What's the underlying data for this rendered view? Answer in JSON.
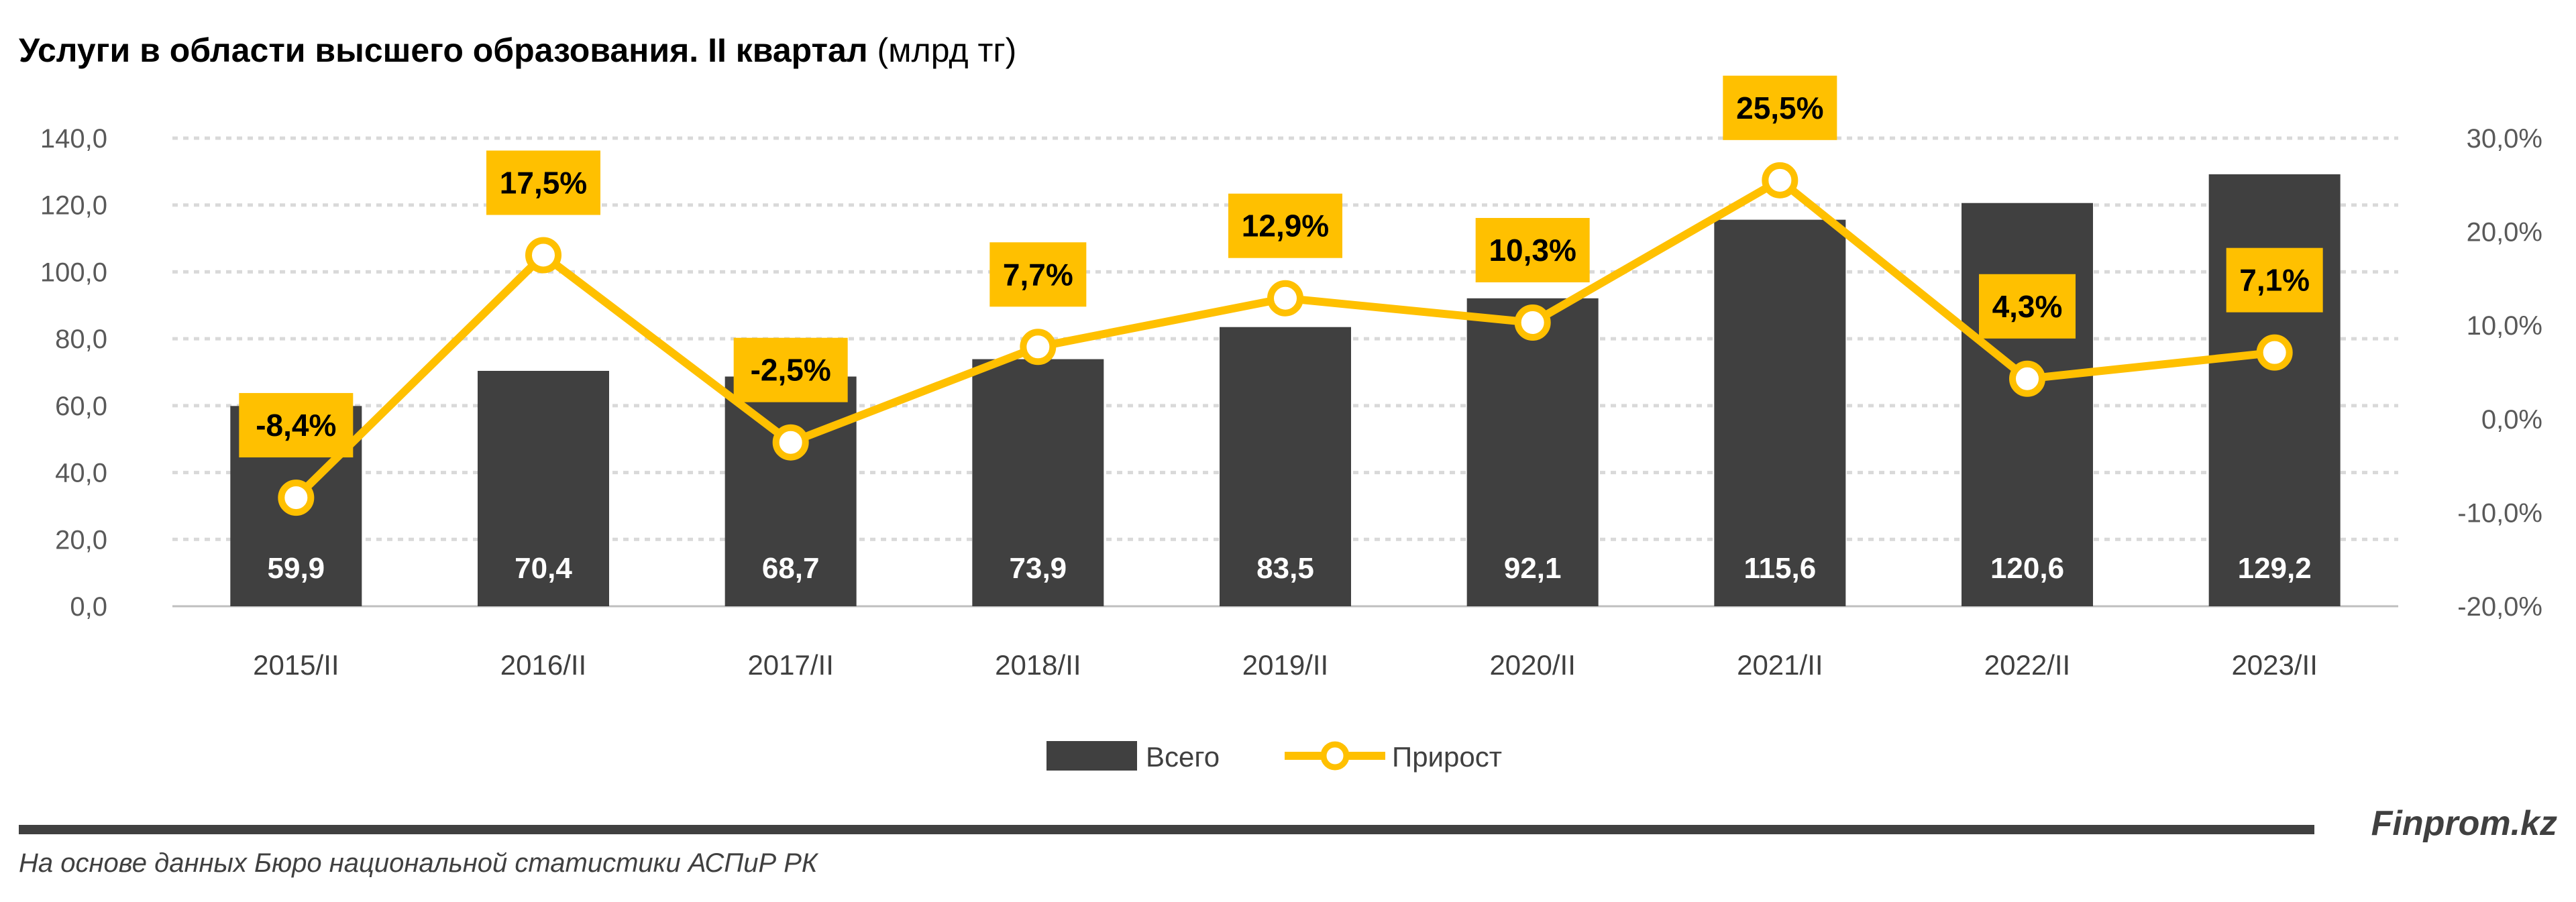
{
  "chart_data": {
    "type": "bar+line",
    "title": "Услуги в области высшего образования. II квартал",
    "title_unit": "(млрд тг)",
    "categories": [
      "2015/II",
      "2016/II",
      "2017/II",
      "2018/II",
      "2019/II",
      "2020/II",
      "2021/II",
      "2022/II",
      "2023/II"
    ],
    "series": [
      {
        "name": "Всего",
        "type": "bar",
        "axis": "left",
        "color": "#404040",
        "values": [
          59.9,
          70.4,
          68.7,
          73.9,
          83.5,
          92.1,
          115.6,
          120.6,
          129.2
        ],
        "labels": [
          "59,9",
          "70,4",
          "68,7",
          "73,9",
          "83,5",
          "92,1",
          "115,6",
          "120,6",
          "129,2"
        ]
      },
      {
        "name": "Прирост",
        "type": "line",
        "axis": "right",
        "color": "#FFC000",
        "values": [
          -8.4,
          17.5,
          -2.5,
          7.7,
          12.9,
          10.3,
          25.5,
          4.3,
          7.1
        ],
        "labels": [
          "-8,4%",
          "17,5%",
          "-2,5%",
          "7,7%",
          "12,9%",
          "10,3%",
          "25,5%",
          "4,3%",
          "7,1%"
        ]
      }
    ],
    "ylim_left": [
      0,
      140
    ],
    "yticks_left": [
      "0,0",
      "20,0",
      "40,0",
      "60,0",
      "80,0",
      "100,0",
      "120,0",
      "140,0"
    ],
    "ylim_right": [
      -20,
      30
    ],
    "yticks_right": [
      "-20,0%",
      "-10,0%",
      "0,0%",
      "10,0%",
      "20,0%",
      "30,0%"
    ],
    "grid": true,
    "legend": "bottom"
  },
  "footer": {
    "source": "На основе данных Бюро национальной статистики АСПиР РК",
    "brand": "Finprom.kz"
  }
}
